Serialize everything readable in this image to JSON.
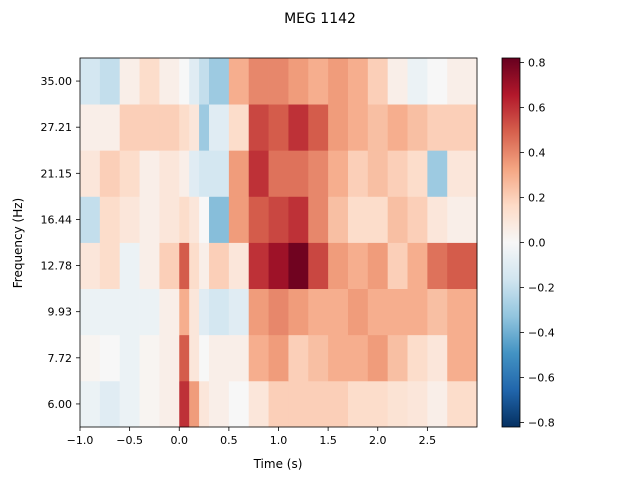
{
  "chart_data": {
    "type": "heatmap",
    "title": "MEG 1142",
    "xlabel": "Time (s)",
    "ylabel": "Frequency (Hz)",
    "xlim": [
      -1.0,
      3.0
    ],
    "x_ticks": [
      -1.0,
      -0.5,
      0.0,
      0.5,
      1.0,
      1.5,
      2.0,
      2.5
    ],
    "x_tick_labels": [
      "−1.0",
      "−0.5",
      "0.0",
      "0.5",
      "1.0",
      "1.5",
      "2.0",
      "2.5"
    ],
    "frequencies_hz": [
      6.0,
      7.72,
      9.93,
      12.78,
      16.44,
      21.15,
      27.21,
      35.0
    ],
    "y_tick_labels": [
      "6.00",
      "7.72",
      "9.93",
      "12.78",
      "16.44",
      "21.15",
      "27.21",
      "35.00"
    ],
    "colormap": "RdBu_r",
    "vmin": -0.82,
    "vmax": 0.82,
    "colorbar_ticks": [
      0.8,
      0.6,
      0.4,
      0.2,
      0.0,
      -0.2,
      -0.4,
      -0.6,
      -0.8
    ],
    "colorbar_tick_labels": [
      "0.8",
      "0.6",
      "0.4",
      "0.2",
      "0.0",
      "−0.2",
      "−0.4",
      "−0.6",
      "−0.8"
    ],
    "grid": false,
    "time_bin_starts_s": [
      -1.0,
      -0.8,
      -0.6,
      -0.4,
      -0.2,
      0.0,
      0.1,
      0.2,
      0.3,
      0.5,
      0.7,
      0.9,
      1.1,
      1.3,
      1.5,
      1.7,
      1.9,
      2.1,
      2.3,
      2.5,
      2.7
    ],
    "values_by_frequency": [
      [
        -0.05,
        -0.1,
        -0.05,
        0.02,
        0.05,
        0.6,
        0.35,
        0.1,
        0.05,
        0.0,
        0.1,
        0.2,
        0.2,
        0.2,
        0.2,
        0.15,
        0.15,
        0.12,
        0.1,
        0.05,
        0.15
      ],
      [
        0.02,
        0.0,
        -0.05,
        0.02,
        0.05,
        0.5,
        0.1,
        0.0,
        0.05,
        0.05,
        0.3,
        0.35,
        0.2,
        0.25,
        0.3,
        0.3,
        0.35,
        0.25,
        0.15,
        0.1,
        0.3
      ],
      [
        -0.05,
        -0.05,
        -0.05,
        -0.05,
        0.05,
        0.3,
        0.1,
        -0.1,
        -0.15,
        -0.1,
        0.35,
        0.4,
        0.35,
        0.3,
        0.3,
        0.35,
        0.3,
        0.3,
        0.3,
        0.25,
        0.3
      ],
      [
        0.1,
        0.15,
        -0.05,
        0.05,
        0.2,
        0.5,
        0.15,
        0.05,
        0.2,
        0.1,
        0.6,
        0.7,
        0.8,
        0.55,
        0.35,
        0.3,
        0.35,
        0.2,
        0.3,
        0.45,
        0.5
      ],
      [
        -0.2,
        0.15,
        0.1,
        0.05,
        0.1,
        0.15,
        0.1,
        0.0,
        -0.35,
        0.35,
        0.5,
        0.55,
        0.6,
        0.4,
        0.25,
        0.15,
        0.15,
        0.25,
        0.2,
        0.1,
        0.05
      ],
      [
        0.1,
        0.2,
        0.15,
        0.05,
        0.1,
        0.05,
        -0.1,
        -0.15,
        -0.15,
        0.35,
        0.6,
        0.45,
        0.45,
        0.4,
        0.3,
        0.2,
        0.25,
        0.2,
        0.15,
        -0.3,
        0.1
      ],
      [
        0.05,
        0.05,
        0.2,
        0.2,
        0.2,
        0.15,
        0.1,
        -0.3,
        -0.1,
        0.15,
        0.55,
        0.5,
        0.6,
        0.5,
        0.35,
        0.3,
        0.25,
        0.3,
        0.25,
        0.2,
        0.2
      ],
      [
        -0.15,
        -0.2,
        0.05,
        0.15,
        0.05,
        0.0,
        -0.1,
        -0.2,
        -0.3,
        0.3,
        0.4,
        0.4,
        0.35,
        0.3,
        0.35,
        0.3,
        0.2,
        0.05,
        -0.05,
        0.0,
        0.05
      ]
    ]
  }
}
